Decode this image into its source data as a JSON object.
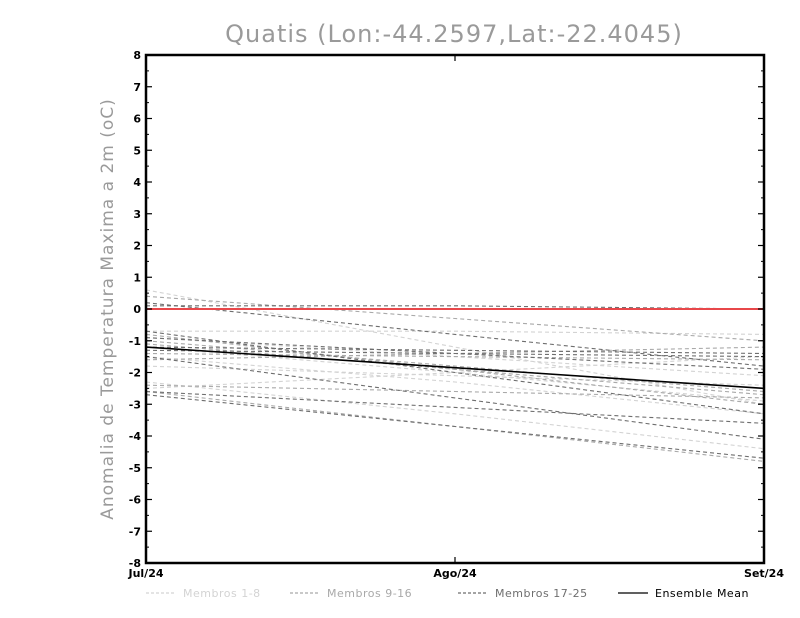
{
  "chart_data": {
    "type": "line",
    "title": "Quatis (Lon:-44.2597,Lat:-22.4045)",
    "xlabel": "",
    "ylabel": "Anomalia de Temperatura Maxima a 2m (oC)",
    "categories": [
      "Jul/24",
      "Ago/24",
      "Set/24"
    ],
    "ylim": [
      -8,
      8
    ],
    "yticks": [
      -8,
      -7,
      -6,
      -5,
      -4,
      -3,
      -2,
      -1,
      0,
      1,
      2,
      3,
      4,
      5,
      6,
      7,
      8
    ],
    "grid": false,
    "legend_position": "bottom",
    "zero_line_color": "#e8474a",
    "groups": [
      {
        "name": "Membros 1-8",
        "color": "#d3d3d3",
        "dash": "4,3"
      },
      {
        "name": "Membros 9-16",
        "color": "#a9a9a9",
        "dash": "4,3"
      },
      {
        "name": "Membros 17-25",
        "color": "#6e6e6e",
        "dash": "4,3"
      },
      {
        "name": "Ensemble Mean",
        "color": "#000000",
        "dash": ""
      }
    ],
    "series": [
      {
        "group": 0,
        "values": [
          0.6,
          -1.2,
          -3.0
        ]
      },
      {
        "group": 0,
        "values": [
          -0.7,
          -0.7,
          -0.8
        ]
      },
      {
        "group": 0,
        "values": [
          -1.2,
          -2.0,
          -2.9
        ]
      },
      {
        "group": 0,
        "values": [
          -2.3,
          -3.3,
          -4.4
        ]
      },
      {
        "group": 0,
        "values": [
          -1.5,
          -2.3,
          -3.3
        ]
      },
      {
        "group": 0,
        "values": [
          -0.9,
          -1.5,
          -2.1
        ]
      },
      {
        "group": 0,
        "values": [
          -2.5,
          -2.0,
          -1.5
        ]
      },
      {
        "group": 0,
        "values": [
          -1.8,
          -2.1,
          -2.4
        ]
      },
      {
        "group": 1,
        "values": [
          0.4,
          -0.3,
          -1.0
        ]
      },
      {
        "group": 1,
        "values": [
          -1.0,
          -1.8,
          -2.6
        ]
      },
      {
        "group": 1,
        "values": [
          -2.6,
          -3.7,
          -4.8
        ]
      },
      {
        "group": 1,
        "values": [
          -1.4,
          -1.5,
          -1.6
        ]
      },
      {
        "group": 1,
        "values": [
          -0.8,
          -1.9,
          -3.0
        ]
      },
      {
        "group": 1,
        "values": [
          -2.4,
          -2.6,
          -2.8
        ]
      },
      {
        "group": 1,
        "values": [
          -1.6,
          -1.4,
          -1.2
        ]
      },
      {
        "group": 1,
        "values": [
          -1.1,
          -1.9,
          -2.7
        ]
      },
      {
        "group": 2,
        "values": [
          0.1,
          0.1,
          0.0
        ]
      },
      {
        "group": 2,
        "values": [
          0.2,
          -0.8,
          -1.8
        ]
      },
      {
        "group": 2,
        "values": [
          -0.7,
          -2.0,
          -3.3
        ]
      },
      {
        "group": 2,
        "values": [
          -2.7,
          -3.7,
          -4.7
        ]
      },
      {
        "group": 2,
        "values": [
          -1.3,
          -1.4,
          -1.5
        ]
      },
      {
        "group": 2,
        "values": [
          -1.5,
          -2.8,
          -4.1
        ]
      },
      {
        "group": 2,
        "values": [
          -0.9,
          -1.4,
          -1.9
        ]
      },
      {
        "group": 2,
        "values": [
          -2.6,
          -3.1,
          -3.6
        ]
      },
      {
        "group": 2,
        "values": [
          -1.2,
          -1.3,
          -1.4
        ]
      },
      {
        "group": 3,
        "values": [
          -1.2,
          -1.85,
          -2.5
        ]
      }
    ]
  }
}
